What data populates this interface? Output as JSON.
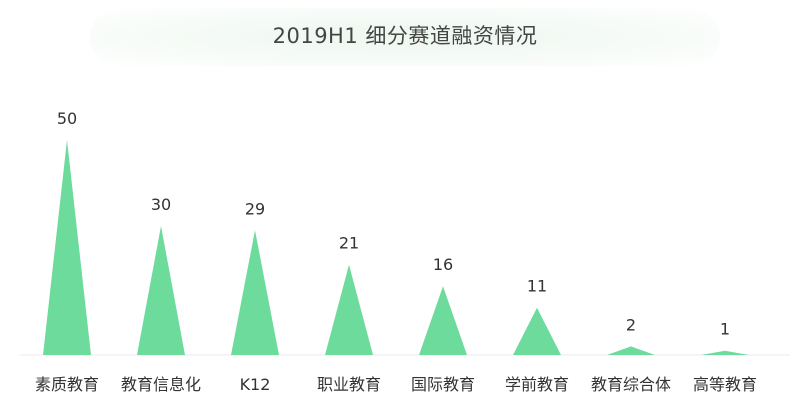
{
  "chart_data": {
    "type": "bar",
    "title": "2019H1 细分赛道融资情况",
    "categories": [
      "素质教育",
      "教育信息化",
      "K12",
      "职业教育",
      "国际教育",
      "学前教育",
      "教育综合体",
      "高等教育"
    ],
    "values": [
      50,
      30,
      29,
      21,
      16,
      11,
      2,
      1
    ],
    "ylim": [
      0,
      50
    ],
    "grid": false,
    "legend": "none",
    "bar_shape": "triangle",
    "colors": {
      "bar": "#6ddb9c",
      "baseline": "#ece8f0"
    }
  }
}
